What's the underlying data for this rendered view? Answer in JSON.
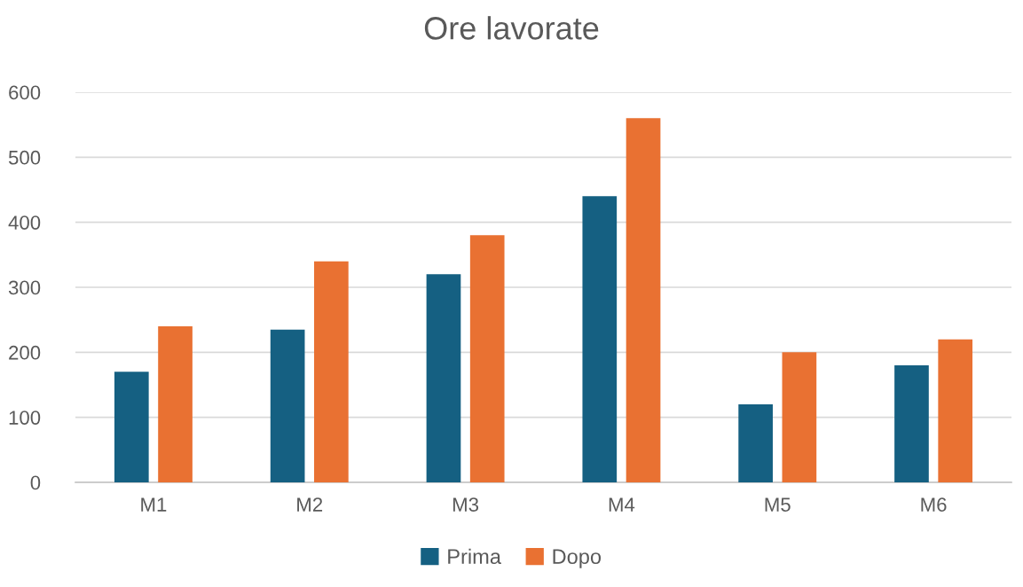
{
  "chart_data": {
    "type": "bar",
    "title": "Ore lavorate",
    "categories": [
      "M1",
      "M2",
      "M3",
      "M4",
      "M5",
      "M6"
    ],
    "series": [
      {
        "name": "Prima",
        "color": "#156082",
        "values": [
          170,
          235,
          320,
          440,
          120,
          180
        ]
      },
      {
        "name": "Dopo",
        "color": "#e97132",
        "values": [
          240,
          340,
          380,
          560,
          200,
          220
        ]
      }
    ],
    "ylim": [
      0,
      600
    ],
    "yticks": [
      0,
      100,
      200,
      300,
      400,
      500,
      600
    ],
    "grid": "y",
    "legend": "bottom"
  }
}
